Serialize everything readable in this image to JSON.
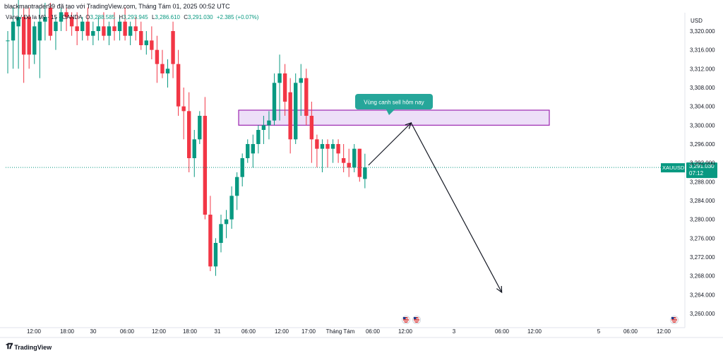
{
  "header": {
    "credit": "blackmantrader99 đã tạo với TradingView.com, Tháng Tám 01, 2025 00:52 UTC",
    "legend": {
      "symbol_name": "Vàng / Đô la Mỹ · 15 · OANDA",
      "open_label": "O",
      "open": "3,288.585",
      "high_label": "H",
      "high": "3,293.945",
      "low_label": "L",
      "low": "3,286.610",
      "close_label": "C",
      "close": "3,291.030",
      "change": "+2.385 (+0.07%)"
    }
  },
  "price_axis": {
    "currency": "USD",
    "ticks": [
      "3,320.000",
      "3,316.000",
      "3,312.000",
      "3,308.000",
      "3,304.000",
      "3,300.000",
      "3,296.000",
      "3,292.000",
      "3,288.000",
      "3,284.000",
      "3,280.000",
      "3,276.000",
      "3,272.000",
      "3,268.000",
      "3,264.000",
      "3,260.000"
    ]
  },
  "price_tag": {
    "symbol": "XAUUSD",
    "price": "3,291.030",
    "countdown": "07:12"
  },
  "time_axis": {
    "labels": [
      "12:00",
      "18:00",
      "30",
      "06:00",
      "12:00",
      "18:00",
      "31",
      "06:00",
      "12:00",
      "17:00",
      "Tháng Tám",
      "06:00",
      "12:00",
      "3",
      "06:00",
      "12:00",
      "5",
      "06:00",
      "12:00"
    ]
  },
  "annotation": {
    "text": "Vùng canh sell hôm nay"
  },
  "footer": {
    "brand": "TradingView"
  },
  "colors": {
    "up": "#089981",
    "down": "#f23645",
    "zone_fill": "#ead9f7",
    "zone_border": "#9c27b0",
    "callout": "#26a69a"
  },
  "chart_data": {
    "type": "candlestick",
    "symbol": "XAUUSD",
    "interval": "15",
    "ylim": [
      3258,
      3322
    ],
    "last_price": 3291.03,
    "sell_zone": [
      3300,
      3303.2
    ],
    "candles": [
      {
        "o": 3318,
        "h": 3320,
        "l": 3311,
        "c": 3318
      },
      {
        "o": 3318,
        "h": 3325,
        "l": 3312,
        "c": 3322
      },
      {
        "o": 3321,
        "h": 3328,
        "l": 3312,
        "c": 3323
      },
      {
        "o": 3323,
        "h": 3325,
        "l": 3309,
        "c": 3315
      },
      {
        "o": 3323,
        "h": 3325,
        "l": 3312,
        "c": 3315
      },
      {
        "o": 3315,
        "h": 3322,
        "l": 3313,
        "c": 3321
      },
      {
        "o": 3318,
        "h": 3325,
        "l": 3310,
        "c": 3322
      },
      {
        "o": 3322,
        "h": 3326,
        "l": 3318,
        "c": 3323
      },
      {
        "o": 3325,
        "h": 3326,
        "l": 3318,
        "c": 3319
      },
      {
        "o": 3320,
        "h": 3323,
        "l": 3316,
        "c": 3322
      },
      {
        "o": 3322,
        "h": 3325,
        "l": 3320,
        "c": 3324
      },
      {
        "o": 3324,
        "h": 3325,
        "l": 3320,
        "c": 3323
      },
      {
        "o": 3323,
        "h": 3324,
        "l": 3319,
        "c": 3321
      },
      {
        "o": 3321,
        "h": 3324,
        "l": 3317,
        "c": 3320
      },
      {
        "o": 3320,
        "h": 3323,
        "l": 3318,
        "c": 3322
      },
      {
        "o": 3322,
        "h": 3325,
        "l": 3318,
        "c": 3319
      },
      {
        "o": 3319,
        "h": 3322,
        "l": 3317,
        "c": 3320
      },
      {
        "o": 3320,
        "h": 3323,
        "l": 3318,
        "c": 3321
      },
      {
        "o": 3321,
        "h": 3324,
        "l": 3318,
        "c": 3319
      },
      {
        "o": 3319,
        "h": 3322,
        "l": 3317,
        "c": 3321
      },
      {
        "o": 3321,
        "h": 3324,
        "l": 3318,
        "c": 3320
      },
      {
        "o": 3320,
        "h": 3323,
        "l": 3318,
        "c": 3322
      },
      {
        "o": 3322,
        "h": 3325,
        "l": 3318,
        "c": 3319
      },
      {
        "o": 3319,
        "h": 3322,
        "l": 3317,
        "c": 3321
      },
      {
        "o": 3321,
        "h": 3323,
        "l": 3318,
        "c": 3320
      },
      {
        "o": 3320,
        "h": 3322,
        "l": 3316,
        "c": 3317
      },
      {
        "o": 3317,
        "h": 3320,
        "l": 3315,
        "c": 3318
      },
      {
        "o": 3318,
        "h": 3321,
        "l": 3314,
        "c": 3316
      },
      {
        "o": 3316,
        "h": 3319,
        "l": 3309,
        "c": 3313
      },
      {
        "o": 3313,
        "h": 3316,
        "l": 3310,
        "c": 3311
      },
      {
        "o": 3311,
        "h": 3314,
        "l": 3308,
        "c": 3312
      },
      {
        "o": 3320,
        "h": 3322,
        "l": 3310,
        "c": 3313
      },
      {
        "o": 3313,
        "h": 3316,
        "l": 3302,
        "c": 3304
      },
      {
        "o": 3304,
        "h": 3308,
        "l": 3297,
        "c": 3303
      },
      {
        "o": 3303,
        "h": 3307,
        "l": 3290,
        "c": 3293
      },
      {
        "o": 3293,
        "h": 3299,
        "l": 3289,
        "c": 3297
      },
      {
        "o": 3297,
        "h": 3303,
        "l": 3296,
        "c": 3302
      },
      {
        "o": 3302,
        "h": 3306,
        "l": 3280,
        "c": 3281
      },
      {
        "o": 3281,
        "h": 3285,
        "l": 3269,
        "c": 3270
      },
      {
        "o": 3270,
        "h": 3276,
        "l": 3268,
        "c": 3275
      },
      {
        "o": 3275,
        "h": 3281,
        "l": 3273,
        "c": 3279
      },
      {
        "o": 3279,
        "h": 3282,
        "l": 3276,
        "c": 3280
      },
      {
        "o": 3280,
        "h": 3287,
        "l": 3278,
        "c": 3285
      },
      {
        "o": 3285,
        "h": 3290,
        "l": 3282,
        "c": 3289
      },
      {
        "o": 3289,
        "h": 3294,
        "l": 3287,
        "c": 3293
      },
      {
        "o": 3293,
        "h": 3297,
        "l": 3292,
        "c": 3296
      },
      {
        "o": 3294,
        "h": 3298,
        "l": 3291,
        "c": 3296
      },
      {
        "o": 3296,
        "h": 3300,
        "l": 3294,
        "c": 3299
      },
      {
        "o": 3299,
        "h": 3302,
        "l": 3296,
        "c": 3300
      },
      {
        "o": 3300,
        "h": 3303,
        "l": 3297,
        "c": 3301
      },
      {
        "o": 3301,
        "h": 3311,
        "l": 3300,
        "c": 3309
      },
      {
        "o": 3309,
        "h": 3315,
        "l": 3301,
        "c": 3311
      },
      {
        "o": 3311,
        "h": 3313,
        "l": 3302,
        "c": 3305
      },
      {
        "o": 3307,
        "h": 3310,
        "l": 3294,
        "c": 3297
      },
      {
        "o": 3297,
        "h": 3311,
        "l": 3296,
        "c": 3309
      },
      {
        "o": 3309,
        "h": 3313,
        "l": 3302,
        "c": 3310
      },
      {
        "o": 3310,
        "h": 3312,
        "l": 3300,
        "c": 3302
      },
      {
        "o": 3302,
        "h": 3305,
        "l": 3292,
        "c": 3297
      },
      {
        "o": 3297,
        "h": 3298,
        "l": 3291,
        "c": 3295
      },
      {
        "o": 3295,
        "h": 3297,
        "l": 3290,
        "c": 3296
      },
      {
        "o": 3296,
        "h": 3297,
        "l": 3291,
        "c": 3295
      },
      {
        "o": 3295,
        "h": 3297,
        "l": 3292,
        "c": 3296
      },
      {
        "o": 3296,
        "h": 3297,
        "l": 3292,
        "c": 3294
      },
      {
        "o": 3293,
        "h": 3296,
        "l": 3290,
        "c": 3292
      },
      {
        "o": 3292,
        "h": 3295,
        "l": 3289,
        "c": 3291
      },
      {
        "o": 3291,
        "h": 3296,
        "l": 3290,
        "c": 3295
      },
      {
        "o": 3295,
        "h": 3295,
        "l": 3288,
        "c": 3289
      },
      {
        "o": 3288.585,
        "h": 3293.945,
        "l": 3286.61,
        "c": 3291.03
      }
    ],
    "forecast_path": [
      {
        "bar_offset": 0,
        "price": 3291.5
      },
      {
        "bar_offset": 8,
        "price": 3300.5
      },
      {
        "bar_offset": 25,
        "price": 3264.5
      }
    ]
  }
}
